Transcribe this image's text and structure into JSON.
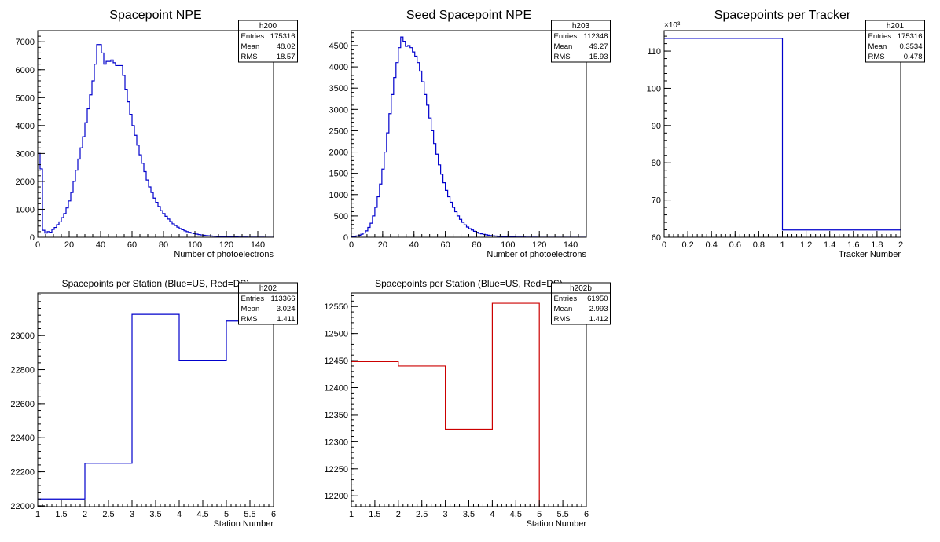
{
  "colors": {
    "blue": "#0000cc",
    "red": "#cc0000",
    "frame": "#000000",
    "background": "#ffffff"
  },
  "chart_data": [
    {
      "id": "h200",
      "type": "histogram",
      "title": "Spacepoint NPE",
      "xlabel": "Number of photoelectrons",
      "ylabel": "",
      "xlim": [
        0,
        150
      ],
      "ylim": [
        0,
        7400
      ],
      "grid": false,
      "color": "blue",
      "x_ticks": [
        0,
        20,
        40,
        60,
        80,
        100,
        120,
        140
      ],
      "y_ticks": [
        0,
        1000,
        2000,
        3000,
        4000,
        5000,
        6000,
        7000
      ],
      "bin_width": 1.5,
      "bin_start": 0,
      "values": [
        3000,
        2450,
        250,
        150,
        200,
        180,
        280,
        350,
        450,
        550,
        700,
        850,
        1050,
        1300,
        1600,
        2000,
        2400,
        2800,
        3200,
        3600,
        4100,
        4600,
        5100,
        5600,
        6200,
        6900,
        6900,
        6600,
        6200,
        6300,
        6300,
        6350,
        6250,
        6150,
        6150,
        6150,
        5800,
        5300,
        4850,
        4400,
        4000,
        3650,
        3300,
        2950,
        2650,
        2350,
        2050,
        1800,
        1600,
        1400,
        1250,
        1100,
        950,
        850,
        750,
        650,
        560,
        480,
        420,
        360,
        310,
        270,
        230,
        200,
        175,
        150,
        130,
        112,
        96,
        82,
        70,
        60,
        52,
        45,
        39,
        34,
        29,
        25,
        22,
        19,
        17,
        15,
        13,
        11,
        10,
        9,
        8,
        7,
        6,
        5,
        5,
        4,
        4,
        3,
        3,
        3,
        2,
        2,
        2,
        2
      ],
      "stats": {
        "name": "h200",
        "rows": [
          [
            "Entries",
            "175316"
          ],
          [
            "Mean",
            "48.02"
          ],
          [
            "RMS",
            "18.57"
          ]
        ]
      }
    },
    {
      "id": "h203",
      "type": "histogram",
      "title": "Seed Spacepoint NPE",
      "xlabel": "Number of photoelectrons",
      "ylabel": "",
      "xlim": [
        0,
        150
      ],
      "ylim": [
        0,
        4850
      ],
      "grid": false,
      "color": "blue",
      "x_ticks": [
        0,
        20,
        40,
        60,
        80,
        100,
        120,
        140
      ],
      "y_ticks": [
        0,
        500,
        1000,
        1500,
        2000,
        2500,
        3000,
        3500,
        4000,
        4500
      ],
      "bin_width": 1.5,
      "bin_start": 0,
      "values": [
        10,
        20,
        30,
        45,
        70,
        100,
        150,
        230,
        330,
        500,
        700,
        950,
        1250,
        1600,
        2000,
        2450,
        2900,
        3350,
        3750,
        4100,
        4450,
        4700,
        4600,
        4480,
        4500,
        4450,
        4350,
        4250,
        4100,
        3900,
        3650,
        3350,
        3100,
        2800,
        2500,
        2200,
        1950,
        1700,
        1480,
        1280,
        1100,
        950,
        820,
        700,
        600,
        500,
        420,
        350,
        290,
        240,
        200,
        170,
        140,
        115,
        95,
        80,
        68,
        57,
        48,
        40,
        33,
        28,
        23,
        19,
        16,
        14,
        12,
        10,
        8,
        7,
        6,
        5,
        4,
        4,
        3,
        3,
        2,
        2,
        2,
        1,
        1,
        1,
        1,
        1,
        1,
        1,
        1,
        1,
        1,
        1,
        1,
        1,
        1,
        1,
        1,
        1,
        1,
        1,
        1,
        1
      ],
      "stats": {
        "name": "h203",
        "rows": [
          [
            "Entries",
            "112348"
          ],
          [
            "Mean",
            "49.27"
          ],
          [
            "RMS",
            "15.93"
          ]
        ]
      }
    },
    {
      "id": "h201",
      "type": "histogram",
      "title": "Spacepoints per Tracker",
      "xlabel": "Tracker Number",
      "ylabel": "",
      "xlim": [
        0,
        2
      ],
      "ylim": [
        60,
        115.5
      ],
      "grid": false,
      "color": "blue",
      "y_exponent": "×10³",
      "x_ticks": [
        0,
        0.2,
        0.4,
        0.6,
        0.8,
        1,
        1.2,
        1.4,
        1.6,
        1.8,
        2
      ],
      "y_ticks": [
        60,
        70,
        80,
        90,
        100,
        110
      ],
      "bin_width": 1,
      "bin_start": 0,
      "values": [
        113.4,
        61.95
      ],
      "stats": {
        "name": "h201",
        "rows": [
          [
            "Entries",
            "175316"
          ],
          [
            "Mean",
            "0.3534"
          ],
          [
            "RMS",
            "0.478"
          ]
        ]
      }
    },
    {
      "id": "h202",
      "type": "histogram",
      "title": "Spacepoints per Station (Blue=US, Red=DS)",
      "xlabel": "Station Number",
      "ylabel": "",
      "xlim": [
        1,
        6
      ],
      "ylim": [
        21995,
        23250
      ],
      "grid": false,
      "color": "blue",
      "x_ticks": [
        1,
        1.5,
        2,
        2.5,
        3,
        3.5,
        4,
        4.5,
        5,
        5.5,
        6
      ],
      "y_ticks": [
        22000,
        22200,
        22400,
        22600,
        22800,
        23000
      ],
      "bin_width": 1,
      "bin_start": 1,
      "values": [
        22040,
        22250,
        23125,
        22855,
        23085
      ],
      "stats": {
        "name": "h202",
        "rows": [
          [
            "Entries",
            "113366"
          ],
          [
            "Mean",
            "3.024"
          ],
          [
            "RMS",
            "1.411"
          ]
        ]
      }
    },
    {
      "id": "h202b",
      "type": "histogram",
      "title": "Spacepoints per Station (Blue=US, Red=DS)",
      "xlabel": "Station Number",
      "ylabel": "",
      "xlim": [
        1,
        6
      ],
      "ylim": [
        12180,
        12575
      ],
      "grid": false,
      "color": "red",
      "x_ticks": [
        1,
        1.5,
        2,
        2.5,
        3,
        3.5,
        4,
        4.5,
        5,
        5.5,
        6
      ],
      "y_ticks": [
        12200,
        12250,
        12300,
        12350,
        12400,
        12450,
        12500,
        12550
      ],
      "bin_width": 1,
      "bin_start": 1,
      "values": [
        12448,
        12440,
        12323,
        12556,
        12178
      ],
      "stats": {
        "name": "h202b",
        "rows": [
          [
            "Entries",
            "61950"
          ],
          [
            "Mean",
            "2.993"
          ],
          [
            "RMS",
            "1.412"
          ]
        ]
      }
    }
  ]
}
